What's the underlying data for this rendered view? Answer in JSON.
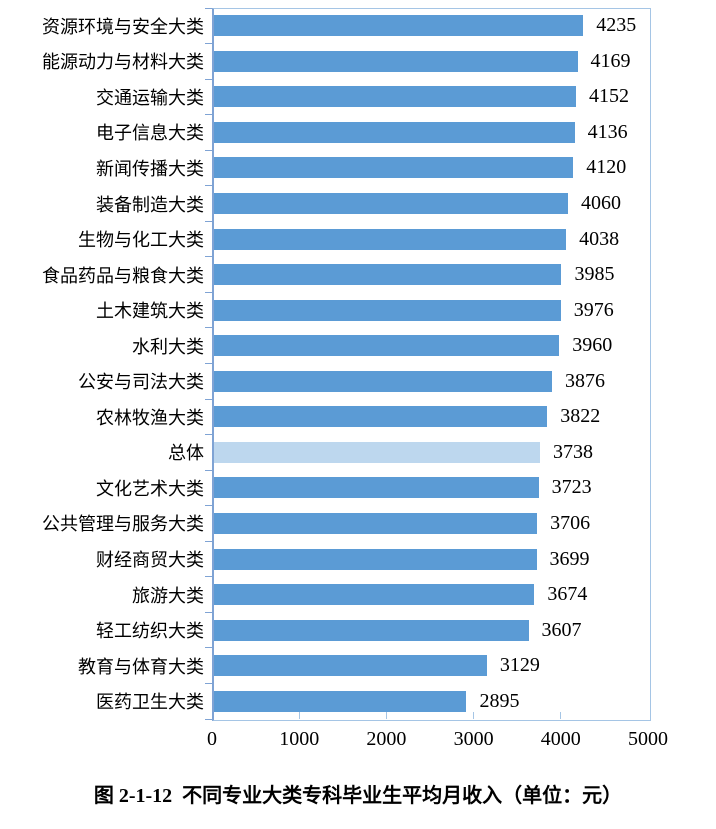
{
  "figure": {
    "caption": "图 2-1-12  不同专业大类专科毕业生平均月收入（单位：元）"
  },
  "chart_data": {
    "type": "bar",
    "orientation": "horizontal",
    "title": "图 2-1-12 不同专业大类专科毕业生平均月收入（单位：元）",
    "unit": "元",
    "categories": [
      "资源环境与安全大类",
      "能源动力与材料大类",
      "交通运输大类",
      "电子信息大类",
      "新闻传播大类",
      "装备制造大类",
      "生物与化工大类",
      "食品药品与粮食大类",
      "土木建筑大类",
      "水利大类",
      "公安与司法大类",
      "农林牧渔大类",
      "总体",
      "文化艺术大类",
      "公共管理与服务大类",
      "财经商贸大类",
      "旅游大类",
      "轻工纺织大类",
      "教育与体育大类",
      "医药卫生大类"
    ],
    "values": [
      4235,
      4169,
      4152,
      4136,
      4120,
      4060,
      4038,
      3985,
      3976,
      3960,
      3876,
      3822,
      3738,
      3723,
      3706,
      3699,
      3674,
      3607,
      3129,
      2895
    ],
    "highlight_category": "总体",
    "xlim": [
      0,
      5000
    ],
    "x_ticks": [
      0,
      1000,
      2000,
      3000,
      4000,
      5000
    ],
    "value_labels": true,
    "grid": false,
    "legend": "none",
    "colors": {
      "bar": "#5B9BD5",
      "highlight_bar": "#BDD7EE",
      "axis": "#A5C5E5",
      "text": "#000000"
    }
  }
}
